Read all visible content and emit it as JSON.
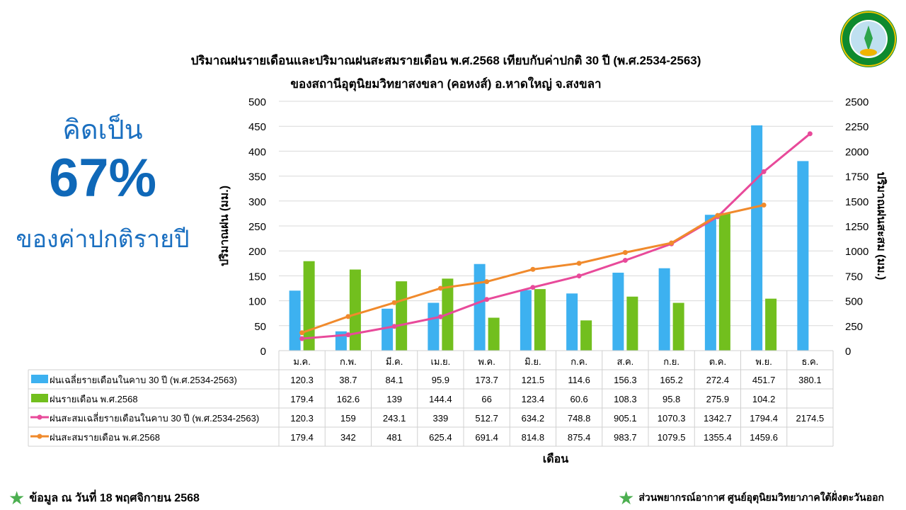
{
  "header": {
    "title_line1": "ปริมาณฝนรายเดือนและปริมาณฝนสะสมรายเดือน  พ.ศ.2568 เทียบกับค่าปกติ 30 ปี (พ.ศ.2534-2563)",
    "title_line2": "ของสถานีอุตุนิยมวิทยาสงขลา  (คอหงส์) อ.หาดใหญ่ จ.สงขลา",
    "logo_text": "กรมอุตุนิยมวิทยา METEOROLOGICAL DEPARTMENT"
  },
  "summary": {
    "line1": "คิดเป็น",
    "percent": "67%",
    "line2": "ของค่าปกติรายปี"
  },
  "footer": {
    "left": "ข้อมูล ณ วันที่ 18 พฤศจิกายน 2568",
    "right": "ส่วนพยากรณ์อากาศ ศูนย์อุตุนิยมวิทยาภาคใต้ฝั่งตะวันออก"
  },
  "chart_data": {
    "type": "bar",
    "categories": [
      "ม.ค.",
      "ก.พ.",
      "มี.ค.",
      "เม.ย.",
      "พ.ค.",
      "มิ.ย.",
      "ก.ค.",
      "ส.ค.",
      "ก.ย.",
      "ต.ค.",
      "พ.ย.",
      "ธ.ค."
    ],
    "xlabel": "เดือน",
    "ylabel": "ปริมาณฝน (มม.)",
    "y2label": "ปริมาณฝนสะสม (มม.)",
    "ylim": [
      0,
      500
    ],
    "y2lim": [
      0,
      2500
    ],
    "yticks": [
      0,
      50,
      100,
      150,
      200,
      250,
      300,
      350,
      400,
      450,
      500
    ],
    "y2ticks": [
      0,
      250,
      500,
      750,
      1000,
      1250,
      1500,
      1750,
      2000,
      2250,
      2500
    ],
    "grid": true,
    "series": [
      {
        "name": "ฝนเฉลี่ยรายเดือนในคาบ 30 ปี (พ.ศ.2534-2563)",
        "kind": "bar",
        "axis": "left",
        "color": "#3db1f0",
        "values": [
          120.3,
          38.7,
          84.1,
          95.9,
          173.7,
          121.5,
          114.6,
          156.3,
          165.2,
          272.4,
          451.7,
          380.1
        ]
      },
      {
        "name": "ฝนรายเดือน พ.ศ.2568",
        "kind": "bar",
        "axis": "left",
        "color": "#72bf1e",
        "values": [
          179.4,
          162.6,
          139,
          144.4,
          66,
          123.4,
          60.6,
          108.3,
          95.8,
          275.9,
          104.2,
          null
        ]
      },
      {
        "name": "ฝนสะสมเฉลี่ยรายเดือนในคาบ 30 ปี (พ.ศ.2534-2563)",
        "kind": "line",
        "axis": "right",
        "color": "#e84a9a",
        "values": [
          120.3,
          159,
          243.1,
          339,
          512.7,
          634.2,
          748.8,
          905.1,
          1070.3,
          1342.7,
          1794.4,
          2174.5
        ]
      },
      {
        "name": "ฝนสะสมรายเดือน พ.ศ.2568",
        "kind": "line",
        "axis": "right",
        "color": "#f08a2c",
        "values": [
          179.4,
          342,
          481,
          625.4,
          691.4,
          814.8,
          875.4,
          983.7,
          1079.5,
          1355.4,
          1459.6,
          null
        ]
      }
    ]
  }
}
